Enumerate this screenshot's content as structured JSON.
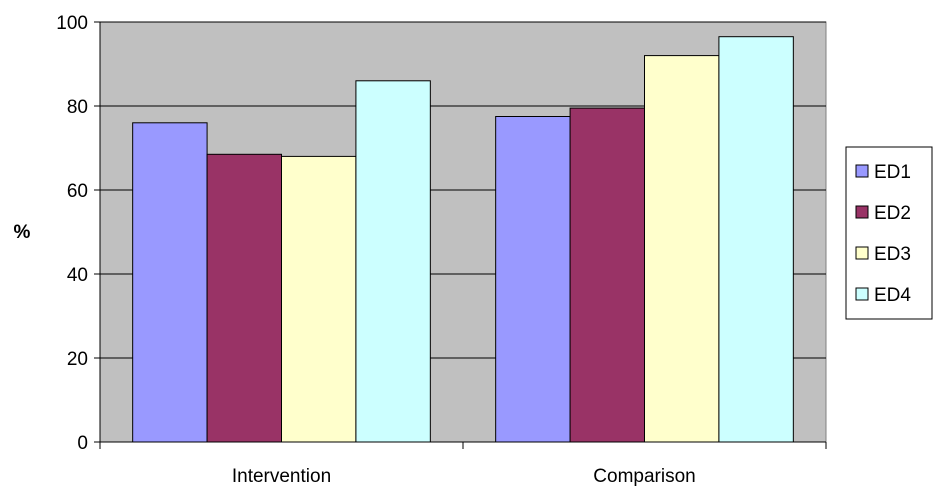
{
  "chart_data": {
    "type": "bar",
    "categories": [
      "Intervention",
      "Comparison"
    ],
    "series": [
      {
        "name": "ED1",
        "values": [
          76,
          77.5
        ],
        "color": "#9999ff"
      },
      {
        "name": "ED2",
        "values": [
          68.5,
          79.5
        ],
        "color": "#993366"
      },
      {
        "name": "ED3",
        "values": [
          68,
          92
        ],
        "color": "#ffffcc"
      },
      {
        "name": "ED4",
        "values": [
          86,
          96.5
        ],
        "color": "#ccffff"
      }
    ],
    "ylabel": "%",
    "ylim": [
      0,
      100
    ],
    "yticks": [
      0,
      20,
      40,
      60,
      80,
      100
    ],
    "grid": true,
    "plot_background": "#c0c0c0",
    "legend_position": "right"
  }
}
